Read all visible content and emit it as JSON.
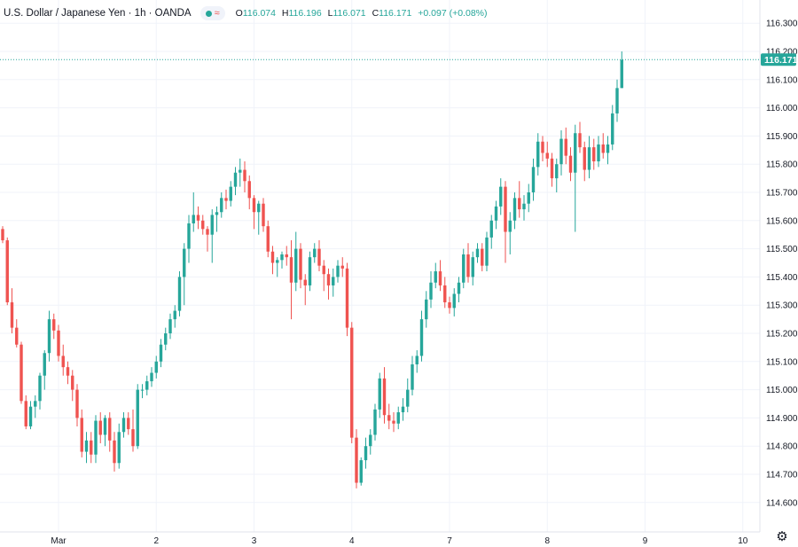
{
  "header": {
    "title": "U.S. Dollar / Japanese Yen · 1h · OANDA",
    "status_icon": "wave-icon",
    "ohlc": {
      "o_label": "O",
      "o": "116.074",
      "h_label": "H",
      "h": "116.196",
      "l_label": "L",
      "l": "116.071",
      "c_label": "C",
      "c": "116.171",
      "change": "+0.097 (+0.08%)"
    }
  },
  "colors": {
    "up": "#26a69a",
    "down": "#ef5350",
    "grid": "#f0f3fa",
    "axis_text": "#131722",
    "price_label_bg": "#26a69a"
  },
  "chart_data": {
    "type": "candlestick",
    "title": "U.S. Dollar / Japanese Yen · 1h · OANDA",
    "ylim": [
      114.55,
      116.39
    ],
    "y_ticks": [
      "114.600",
      "114.700",
      "114.800",
      "114.900",
      "115.000",
      "115.100",
      "115.200",
      "115.300",
      "115.400",
      "115.500",
      "115.600",
      "115.700",
      "115.800",
      "115.900",
      "116.000",
      "116.100",
      "116.200",
      "116.300"
    ],
    "x_ticks": [
      {
        "label": "Mar",
        "index": 12
      },
      {
        "label": "2",
        "index": 33
      },
      {
        "label": "3",
        "index": 54
      },
      {
        "label": "4",
        "index": 75
      },
      {
        "label": "7",
        "index": 96
      },
      {
        "label": "8",
        "index": 117
      },
      {
        "label": "9",
        "index": 138
      },
      {
        "label": "10",
        "index": 159
      }
    ],
    "last_price": "116.171",
    "grid": true,
    "candles": [
      [
        115.57,
        115.58,
        115.52,
        115.53
      ],
      [
        115.53,
        115.54,
        115.3,
        115.31
      ],
      [
        115.31,
        115.36,
        115.2,
        115.22
      ],
      [
        115.22,
        115.25,
        115.15,
        115.16
      ],
      [
        115.16,
        115.17,
        114.95,
        114.96
      ],
      [
        114.96,
        114.98,
        114.86,
        114.87
      ],
      [
        114.87,
        114.96,
        114.86,
        114.94
      ],
      [
        114.94,
        114.98,
        114.9,
        114.96
      ],
      [
        114.96,
        115.06,
        114.93,
        115.05
      ],
      [
        115.05,
        115.14,
        115.0,
        115.13
      ],
      [
        115.13,
        115.28,
        115.1,
        115.25
      ],
      [
        115.25,
        115.27,
        115.18,
        115.21
      ],
      [
        115.21,
        115.23,
        115.1,
        115.12
      ],
      [
        115.12,
        115.16,
        115.05,
        115.08
      ],
      [
        115.08,
        115.1,
        115.02,
        115.05
      ],
      [
        115.05,
        115.07,
        114.96,
        115.0
      ],
      [
        115.0,
        115.02,
        114.87,
        114.9
      ],
      [
        114.9,
        114.93,
        114.76,
        114.78
      ],
      [
        114.78,
        114.85,
        114.74,
        114.82
      ],
      [
        114.82,
        114.85,
        114.74,
        114.77
      ],
      [
        114.77,
        114.91,
        114.74,
        114.89
      ],
      [
        114.89,
        114.92,
        114.81,
        114.84
      ],
      [
        114.84,
        114.91,
        114.8,
        114.9
      ],
      [
        114.9,
        114.92,
        114.78,
        114.82
      ],
      [
        114.82,
        114.85,
        114.71,
        114.74
      ],
      [
        114.74,
        114.88,
        114.72,
        114.85
      ],
      [
        114.85,
        114.92,
        114.83,
        114.9
      ],
      [
        114.9,
        114.92,
        114.84,
        114.86
      ],
      [
        114.86,
        114.93,
        114.78,
        114.8
      ],
      [
        114.8,
        115.02,
        114.79,
        115.0
      ],
      [
        115.0,
        115.02,
        114.97,
        115.0
      ],
      [
        115.0,
        115.05,
        114.98,
        115.03
      ],
      [
        115.03,
        115.08,
        115.01,
        115.06
      ],
      [
        115.06,
        115.12,
        115.04,
        115.1
      ],
      [
        115.1,
        115.18,
        115.08,
        115.16
      ],
      [
        115.16,
        115.22,
        115.14,
        115.2
      ],
      [
        115.2,
        115.27,
        115.18,
        115.25
      ],
      [
        115.25,
        115.3,
        115.22,
        115.28
      ],
      [
        115.28,
        115.42,
        115.26,
        115.4
      ],
      [
        115.4,
        115.52,
        115.3,
        115.5
      ],
      [
        115.5,
        115.62,
        115.45,
        115.59
      ],
      [
        115.59,
        115.7,
        115.56,
        115.62
      ],
      [
        115.62,
        115.65,
        115.57,
        115.6
      ],
      [
        115.6,
        115.62,
        115.55,
        115.57
      ],
      [
        115.57,
        115.58,
        115.49,
        115.55
      ],
      [
        115.55,
        115.64,
        115.45,
        115.62
      ],
      [
        115.62,
        115.65,
        115.56,
        115.63
      ],
      [
        115.63,
        115.7,
        115.61,
        115.68
      ],
      [
        115.68,
        115.71,
        115.64,
        115.67
      ],
      [
        115.67,
        115.74,
        115.65,
        115.72
      ],
      [
        115.72,
        115.79,
        115.69,
        115.77
      ],
      [
        115.77,
        115.82,
        115.72,
        115.78
      ],
      [
        115.78,
        115.81,
        115.7,
        115.74
      ],
      [
        115.74,
        115.76,
        115.64,
        115.68
      ],
      [
        115.68,
        115.69,
        115.57,
        115.63
      ],
      [
        115.63,
        115.67,
        115.55,
        115.66
      ],
      [
        115.66,
        115.68,
        115.56,
        115.58
      ],
      [
        115.58,
        115.6,
        115.47,
        115.49
      ],
      [
        115.49,
        115.51,
        115.41,
        115.45
      ],
      [
        115.45,
        115.47,
        115.4,
        115.46
      ],
      [
        115.46,
        115.49,
        115.43,
        115.48
      ],
      [
        115.48,
        115.51,
        115.44,
        115.47
      ],
      [
        115.47,
        115.53,
        115.25,
        115.38
      ],
      [
        115.38,
        115.56,
        115.35,
        115.5
      ],
      [
        115.5,
        115.52,
        115.36,
        115.39
      ],
      [
        115.39,
        115.41,
        115.3,
        115.37
      ],
      [
        115.37,
        115.49,
        115.35,
        115.47
      ],
      [
        115.47,
        115.52,
        115.45,
        115.5
      ],
      [
        115.5,
        115.53,
        115.42,
        115.44
      ],
      [
        115.44,
        115.46,
        115.35,
        115.41
      ],
      [
        115.41,
        115.43,
        115.32,
        115.37
      ],
      [
        115.37,
        115.43,
        115.33,
        115.4
      ],
      [
        115.4,
        115.46,
        115.38,
        115.44
      ],
      [
        115.44,
        115.47,
        115.4,
        115.43
      ],
      [
        115.43,
        115.45,
        115.19,
        115.22
      ],
      [
        115.22,
        115.24,
        114.81,
        114.83
      ],
      [
        114.83,
        114.86,
        114.65,
        114.67
      ],
      [
        114.67,
        114.76,
        114.66,
        114.75
      ],
      [
        114.75,
        114.83,
        114.72,
        114.8
      ],
      [
        114.8,
        114.86,
        114.77,
        114.84
      ],
      [
        114.84,
        114.95,
        114.82,
        114.93
      ],
      [
        114.93,
        115.06,
        114.9,
        115.04
      ],
      [
        115.04,
        115.08,
        114.88,
        114.91
      ],
      [
        114.91,
        114.95,
        114.86,
        114.89
      ],
      [
        114.89,
        114.92,
        114.85,
        114.88
      ],
      [
        114.88,
        114.94,
        114.86,
        114.92
      ],
      [
        114.92,
        114.97,
        114.89,
        114.94
      ],
      [
        114.94,
        115.04,
        114.92,
        115.0
      ],
      [
        115.0,
        115.12,
        114.98,
        115.09
      ],
      [
        115.09,
        115.14,
        115.06,
        115.12
      ],
      [
        115.12,
        115.28,
        115.1,
        115.25
      ],
      [
        115.25,
        115.35,
        115.22,
        115.32
      ],
      [
        115.32,
        115.42,
        115.29,
        115.38
      ],
      [
        115.38,
        115.45,
        115.36,
        115.42
      ],
      [
        115.42,
        115.46,
        115.35,
        115.37
      ],
      [
        115.37,
        115.4,
        115.29,
        115.31
      ],
      [
        115.31,
        115.33,
        115.27,
        115.29
      ],
      [
        115.29,
        115.36,
        115.26,
        115.34
      ],
      [
        115.34,
        115.4,
        115.31,
        115.38
      ],
      [
        115.38,
        115.5,
        115.36,
        115.48
      ],
      [
        115.48,
        115.52,
        115.38,
        115.4
      ],
      [
        115.4,
        115.49,
        115.37,
        115.47
      ],
      [
        115.47,
        115.52,
        115.45,
        115.5
      ],
      [
        115.5,
        115.52,
        115.42,
        115.44
      ],
      [
        115.44,
        115.56,
        115.42,
        115.54
      ],
      [
        115.54,
        115.62,
        115.5,
        115.6
      ],
      [
        115.6,
        115.67,
        115.57,
        115.65
      ],
      [
        115.65,
        115.75,
        115.62,
        115.72
      ],
      [
        115.72,
        115.74,
        115.45,
        115.56
      ],
      [
        115.56,
        115.63,
        115.48,
        115.6
      ],
      [
        115.6,
        115.7,
        115.57,
        115.68
      ],
      [
        115.68,
        115.74,
        115.61,
        115.64
      ],
      [
        115.64,
        115.69,
        115.6,
        115.66
      ],
      [
        115.66,
        115.73,
        115.63,
        115.7
      ],
      [
        115.7,
        115.82,
        115.67,
        115.79
      ],
      [
        115.79,
        115.91,
        115.76,
        115.88
      ],
      [
        115.88,
        115.9,
        115.81,
        115.84
      ],
      [
        115.84,
        115.88,
        115.79,
        115.82
      ],
      [
        115.82,
        115.84,
        115.72,
        115.75
      ],
      [
        115.75,
        115.82,
        115.7,
        115.8
      ],
      [
        115.8,
        115.92,
        115.76,
        115.89
      ],
      [
        115.89,
        115.93,
        115.8,
        115.83
      ],
      [
        115.83,
        115.86,
        115.74,
        115.77
      ],
      [
        115.77,
        115.94,
        115.56,
        115.91
      ],
      [
        115.91,
        115.95,
        115.84,
        115.86
      ],
      [
        115.86,
        115.88,
        115.74,
        115.78
      ],
      [
        115.78,
        115.9,
        115.75,
        115.86
      ],
      [
        115.86,
        115.89,
        115.78,
        115.81
      ],
      [
        115.81,
        115.9,
        115.79,
        115.87
      ],
      [
        115.87,
        115.91,
        115.82,
        115.84
      ],
      [
        115.84,
        115.9,
        115.8,
        115.87
      ],
      [
        115.87,
        116.01,
        115.85,
        115.98
      ],
      [
        115.98,
        116.1,
        115.95,
        116.07
      ],
      [
        116.07,
        116.2,
        116.07,
        116.17
      ]
    ]
  }
}
